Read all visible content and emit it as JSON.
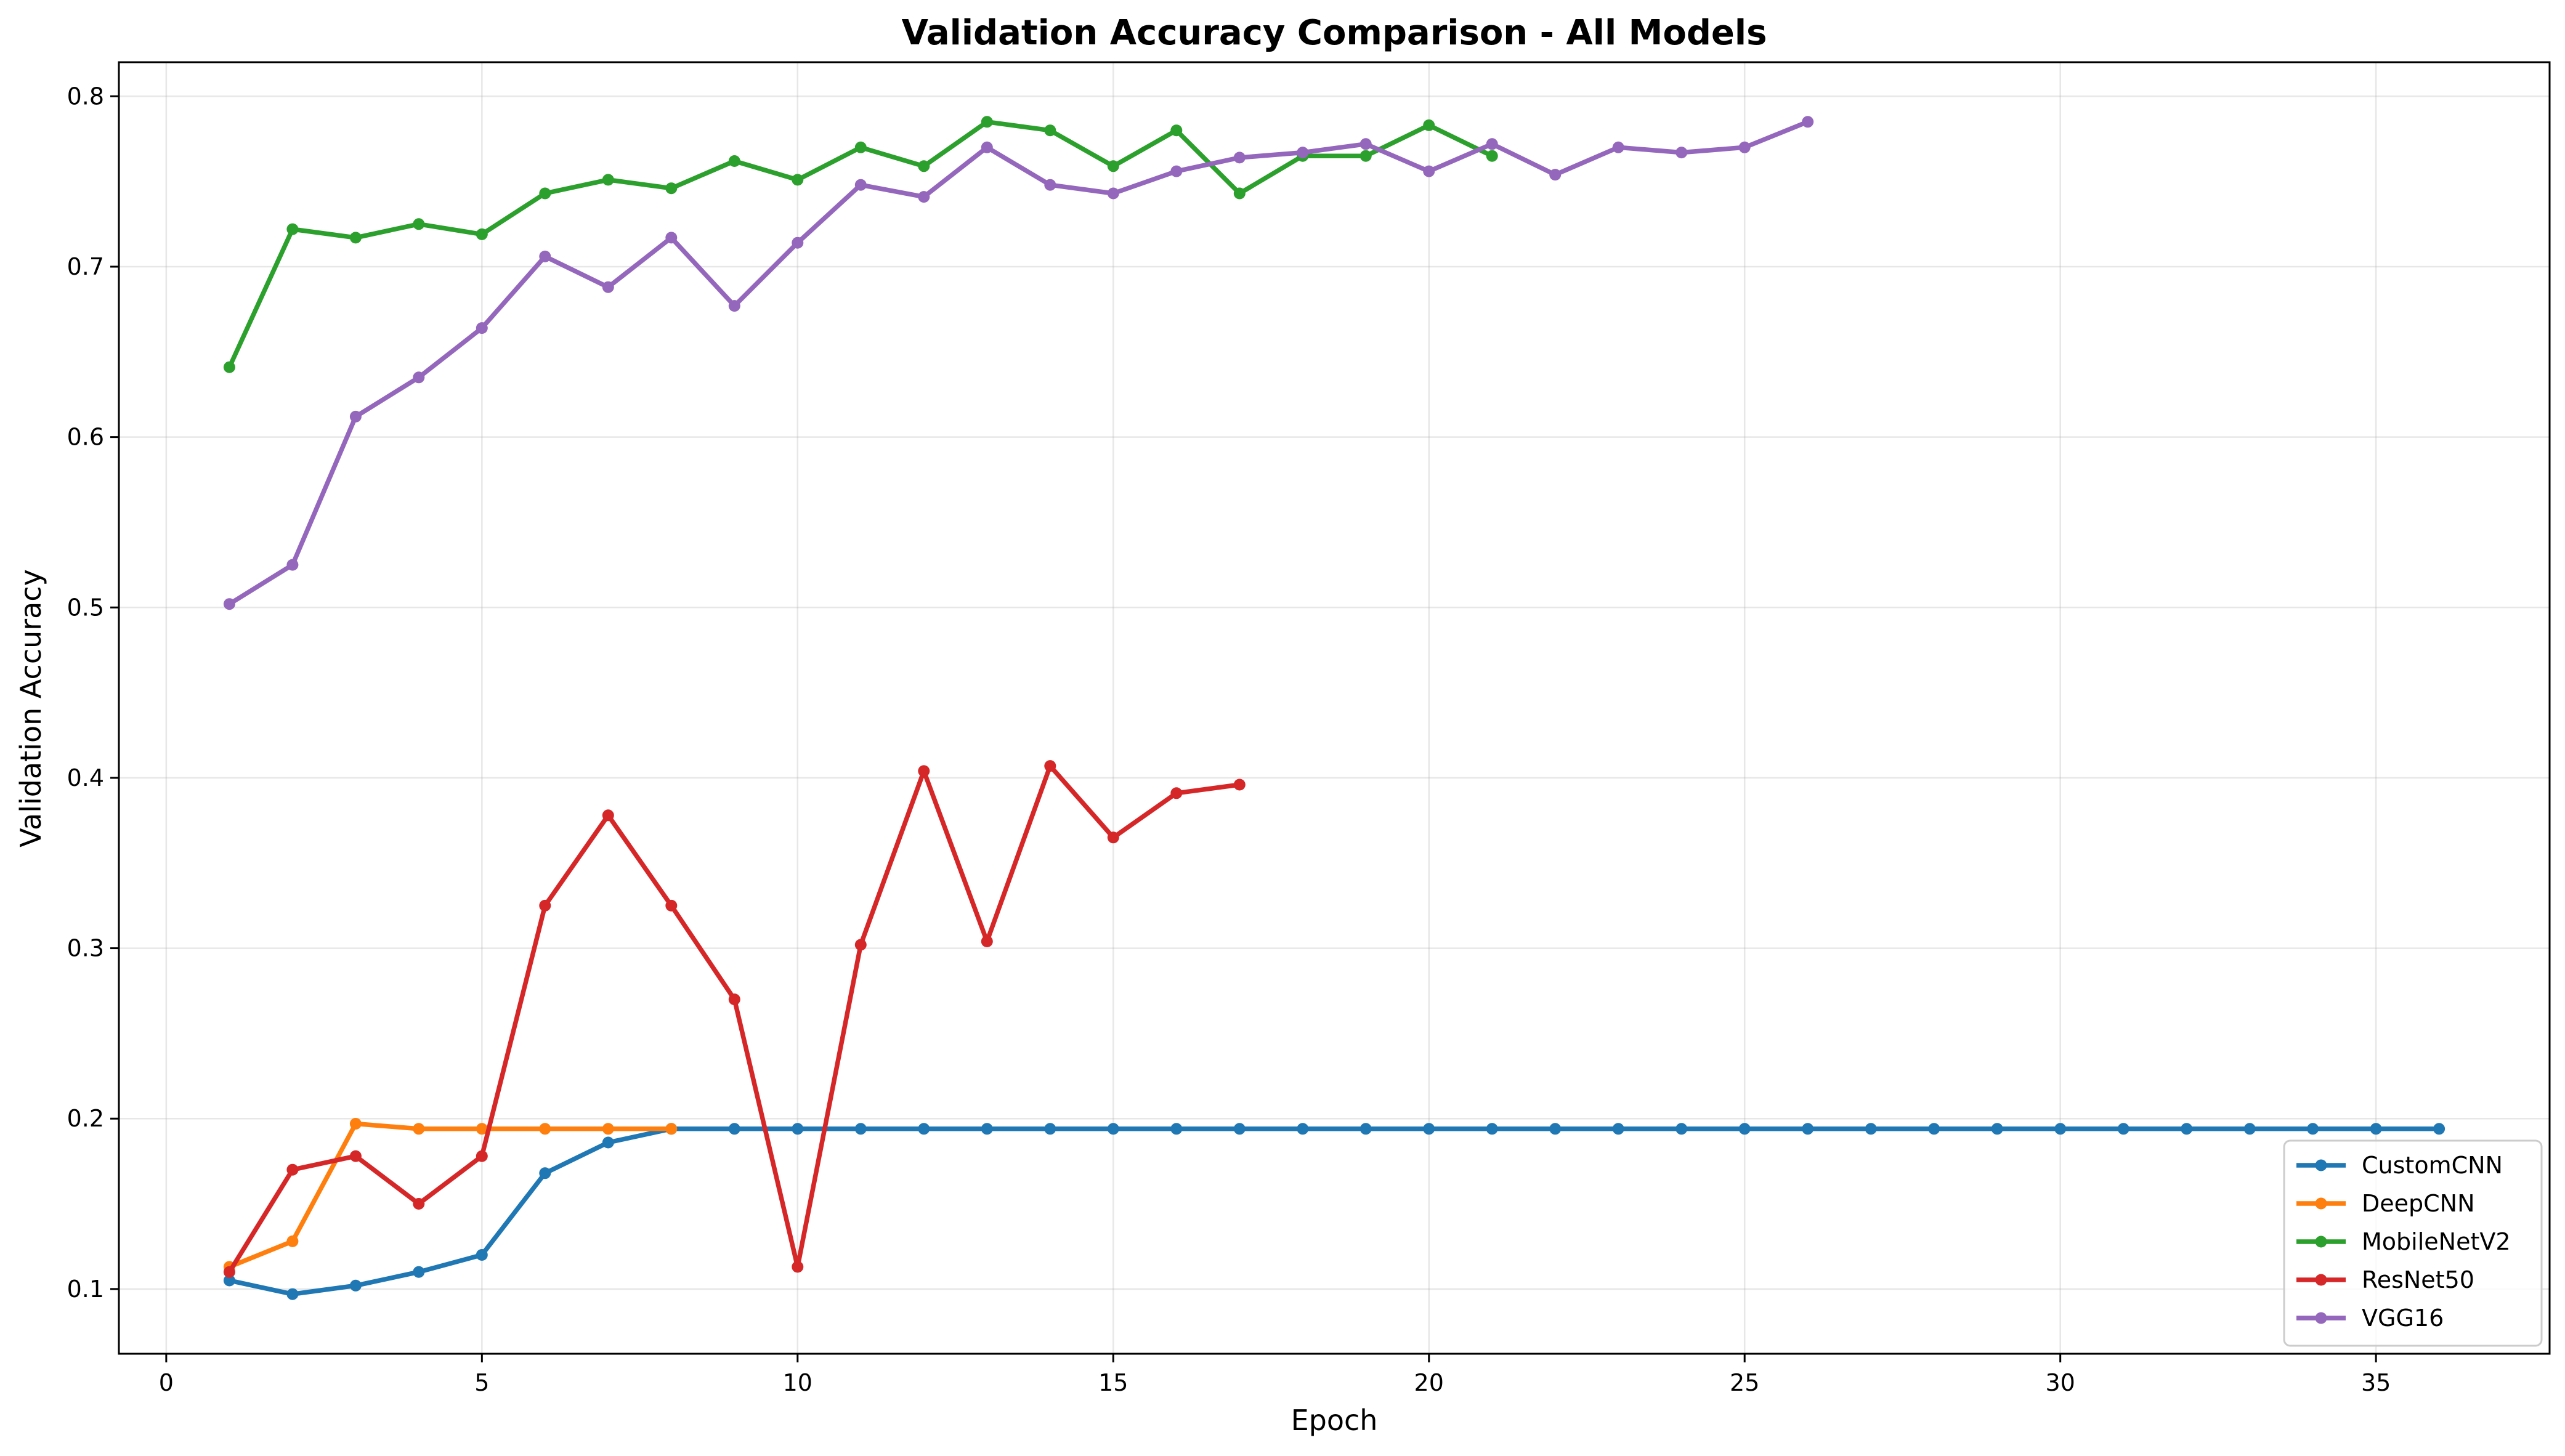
{
  "chart_data": {
    "type": "line",
    "title": "Validation Accuracy Comparison - All Models",
    "xlabel": "Epoch",
    "ylabel": "Validation Accuracy",
    "xlim": [
      -0.75,
      37.75
    ],
    "ylim": [
      0.062,
      0.82
    ],
    "xticks": [
      0,
      5,
      10,
      15,
      20,
      25,
      30,
      35
    ],
    "yticks": [
      0.1,
      0.2,
      0.3,
      0.4,
      0.5,
      0.6,
      0.7,
      0.8
    ],
    "grid": true,
    "legend_position": "lower-right",
    "series": [
      {
        "name": "CustomCNN",
        "color": "#1f77b4",
        "x": [
          1,
          2,
          3,
          4,
          5,
          6,
          7,
          8,
          9,
          10,
          11,
          12,
          13,
          14,
          15,
          16,
          17,
          18,
          19,
          20,
          21,
          22,
          23,
          24,
          25,
          26,
          27,
          28,
          29,
          30,
          31,
          32,
          33,
          34,
          35,
          36
        ],
        "y": [
          0.105,
          0.097,
          0.102,
          0.11,
          0.12,
          0.168,
          0.186,
          0.194,
          0.194,
          0.194,
          0.194,
          0.194,
          0.194,
          0.194,
          0.194,
          0.194,
          0.194,
          0.194,
          0.194,
          0.194,
          0.194,
          0.194,
          0.194,
          0.194,
          0.194,
          0.194,
          0.194,
          0.194,
          0.194,
          0.194,
          0.194,
          0.194,
          0.194,
          0.194,
          0.194,
          0.194
        ]
      },
      {
        "name": "DeepCNN",
        "color": "#ff7f0e",
        "x": [
          1,
          2,
          3,
          4,
          5,
          6,
          7,
          8
        ],
        "y": [
          0.113,
          0.128,
          0.197,
          0.194,
          0.194,
          0.194,
          0.194,
          0.194
        ]
      },
      {
        "name": "MobileNetV2",
        "color": "#2ca02c",
        "x": [
          1,
          2,
          3,
          4,
          5,
          6,
          7,
          8,
          9,
          10,
          11,
          12,
          13,
          14,
          15,
          16,
          17,
          18,
          19,
          20,
          21
        ],
        "y": [
          0.641,
          0.722,
          0.717,
          0.725,
          0.719,
          0.743,
          0.751,
          0.746,
          0.762,
          0.751,
          0.77,
          0.759,
          0.785,
          0.78,
          0.759,
          0.78,
          0.743,
          0.765,
          0.765,
          0.783,
          0.765
        ]
      },
      {
        "name": "ResNet50",
        "color": "#d62728",
        "x": [
          1,
          2,
          3,
          4,
          5,
          6,
          7,
          8,
          9,
          10,
          11,
          12,
          13,
          14,
          15,
          16,
          17
        ],
        "y": [
          0.11,
          0.17,
          0.178,
          0.15,
          0.178,
          0.325,
          0.378,
          0.325,
          0.27,
          0.113,
          0.302,
          0.404,
          0.304,
          0.407,
          0.365,
          0.391,
          0.396
        ]
      },
      {
        "name": "VGG16",
        "color": "#9467bd",
        "x": [
          1,
          2,
          3,
          4,
          5,
          6,
          7,
          8,
          9,
          10,
          11,
          12,
          13,
          14,
          15,
          16,
          17,
          18,
          19,
          20,
          21,
          22,
          23,
          24,
          25,
          26
        ],
        "y": [
          0.502,
          0.525,
          0.612,
          0.635,
          0.664,
          0.706,
          0.688,
          0.717,
          0.677,
          0.714,
          0.748,
          0.741,
          0.77,
          0.748,
          0.743,
          0.756,
          0.764,
          0.767,
          0.772,
          0.756,
          0.772,
          0.754,
          0.77,
          0.767,
          0.77,
          0.785
        ]
      }
    ]
  }
}
